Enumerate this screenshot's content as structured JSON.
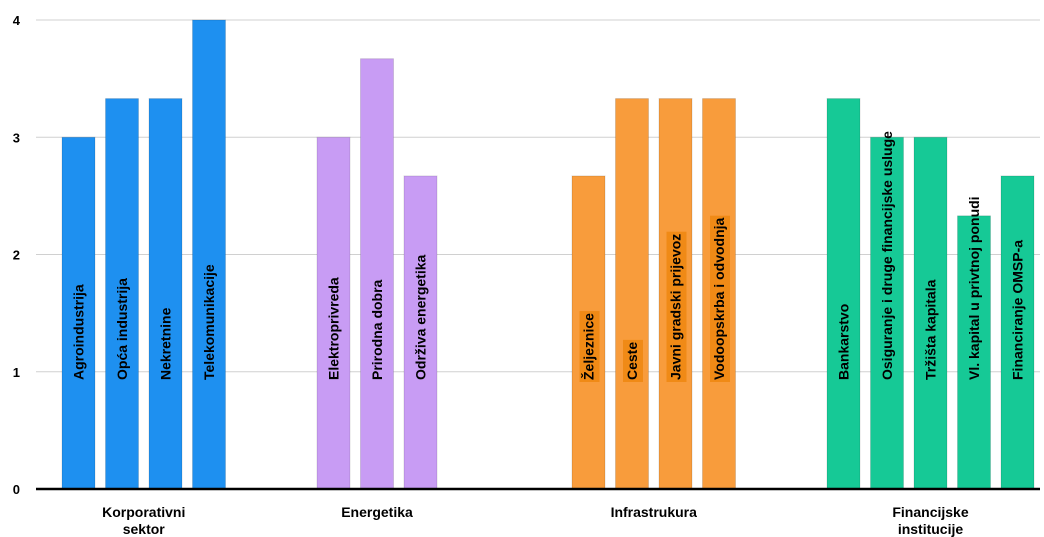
{
  "chart_data": {
    "type": "bar",
    "ylim": [
      0,
      4
    ],
    "yticks": [
      "0",
      "1",
      "2",
      "3",
      "4"
    ],
    "grid": true,
    "groups": [
      {
        "name": "Korporativni sektor",
        "name_lines": [
          "Korporativni",
          "sektor"
        ],
        "color": "#1e90f0",
        "label_bg": "",
        "bars": [
          {
            "label": "Agroindustrija",
            "value": 3.0
          },
          {
            "label": "Opća industrija",
            "value": 3.33
          },
          {
            "label": "Nekretnine",
            "value": 3.33
          },
          {
            "label": "Telekomunikacije",
            "value": 4.0
          }
        ]
      },
      {
        "name": "Energetika",
        "name_lines": [
          "Energetika"
        ],
        "color": "#c89cf4",
        "label_bg": "",
        "bars": [
          {
            "label": "Elektroprivreda",
            "value": 3.0
          },
          {
            "label": "Prirodna dobra",
            "value": 3.67
          },
          {
            "label": "Održiva energetika",
            "value": 2.67
          }
        ]
      },
      {
        "name": "Infrastrukura",
        "name_lines": [
          "Infrastrukura"
        ],
        "color": "#f89c3c",
        "label_bg": "#f08a16",
        "bars": [
          {
            "label": "Željeznice",
            "value": 2.67
          },
          {
            "label": "Ceste",
            "value": 3.33
          },
          {
            "label": "Javni gradski prijevoz",
            "value": 3.33
          },
          {
            "label": "Vodoopskrba i odvodnja",
            "value": 3.33
          }
        ]
      },
      {
        "name": "Financijske institucije",
        "name_lines": [
          "Financijske",
          "institucije"
        ],
        "color": "#16c996",
        "label_bg": "",
        "bars": [
          {
            "label": "Bankarstvo",
            "value": 3.33
          },
          {
            "label": "Osiguranje i druge financijske usluge",
            "value": 3.0
          },
          {
            "label": "Tržišta kapitala",
            "value": 3.0
          },
          {
            "label": "Vl. kapital u privtnoj ponudi",
            "value": 2.33
          },
          {
            "label": "Financiranje OMSP-a",
            "value": 2.67
          }
        ]
      }
    ]
  }
}
